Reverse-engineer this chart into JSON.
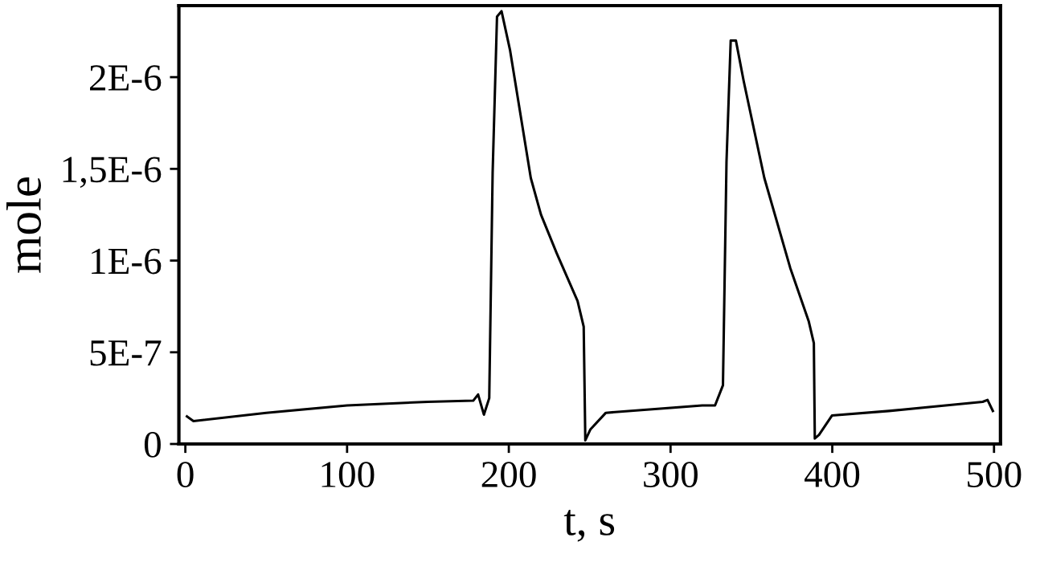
{
  "chart_data": {
    "type": "line",
    "xlabel": "t, s",
    "ylabel": "mole",
    "xlim": [
      -4,
      504
    ],
    "ylim": [
      0,
      2.39e-06
    ],
    "xticks": [
      0,
      100,
      200,
      300,
      400,
      500
    ],
    "yticks": [
      {
        "value": 0,
        "label": "0"
      },
      {
        "value": 5e-07,
        "label": "5E-7"
      },
      {
        "value": 1e-06,
        "label": "1E-6"
      },
      {
        "value": 1.5e-06,
        "label": "1,5E-6"
      },
      {
        "value": 2e-06,
        "label": "2E-6"
      }
    ],
    "grid": false,
    "marker": "none",
    "line_style": "solid",
    "series": [
      {
        "color": "#000000",
        "x": [
          1,
          5,
          50,
          100,
          150,
          178,
          181,
          184.6,
          187.9,
          190,
          192.7,
          195.5,
          200.7,
          213.6,
          219.9,
          229.6,
          242.5,
          246.3,
          247.3,
          250.5,
          260,
          319.6,
          327.5,
          332.4,
          334.6,
          337.2,
          340.4,
          345.2,
          358,
          374,
          385.4,
          388.6,
          389.2,
          391.8,
          399.8,
          435,
          493,
          496,
          499.3
        ],
        "values": [
          1.5e-07,
          1.25e-07,
          1.7e-07,
          2.1e-07,
          2.3e-07,
          2.36e-07,
          2.7e-07,
          1.6e-07,
          2.5e-07,
          1.48e-06,
          2.33e-06,
          2.36e-06,
          2.15e-06,
          1.45e-06,
          1.25e-06,
          1.04e-06,
          7.8e-07,
          6.4e-07,
          2e-08,
          8e-08,
          1.7e-07,
          2.1e-07,
          2.1e-07,
          3.2e-07,
          1.54e-06,
          2.2e-06,
          2.2e-06,
          1.98e-06,
          1.45e-06,
          9.6e-07,
          6.7e-07,
          5.5e-07,
          3e-08,
          5e-08,
          1.55e-07,
          1.8e-07,
          2.3e-07,
          2.4e-07,
          1.8e-07
        ]
      }
    ]
  }
}
